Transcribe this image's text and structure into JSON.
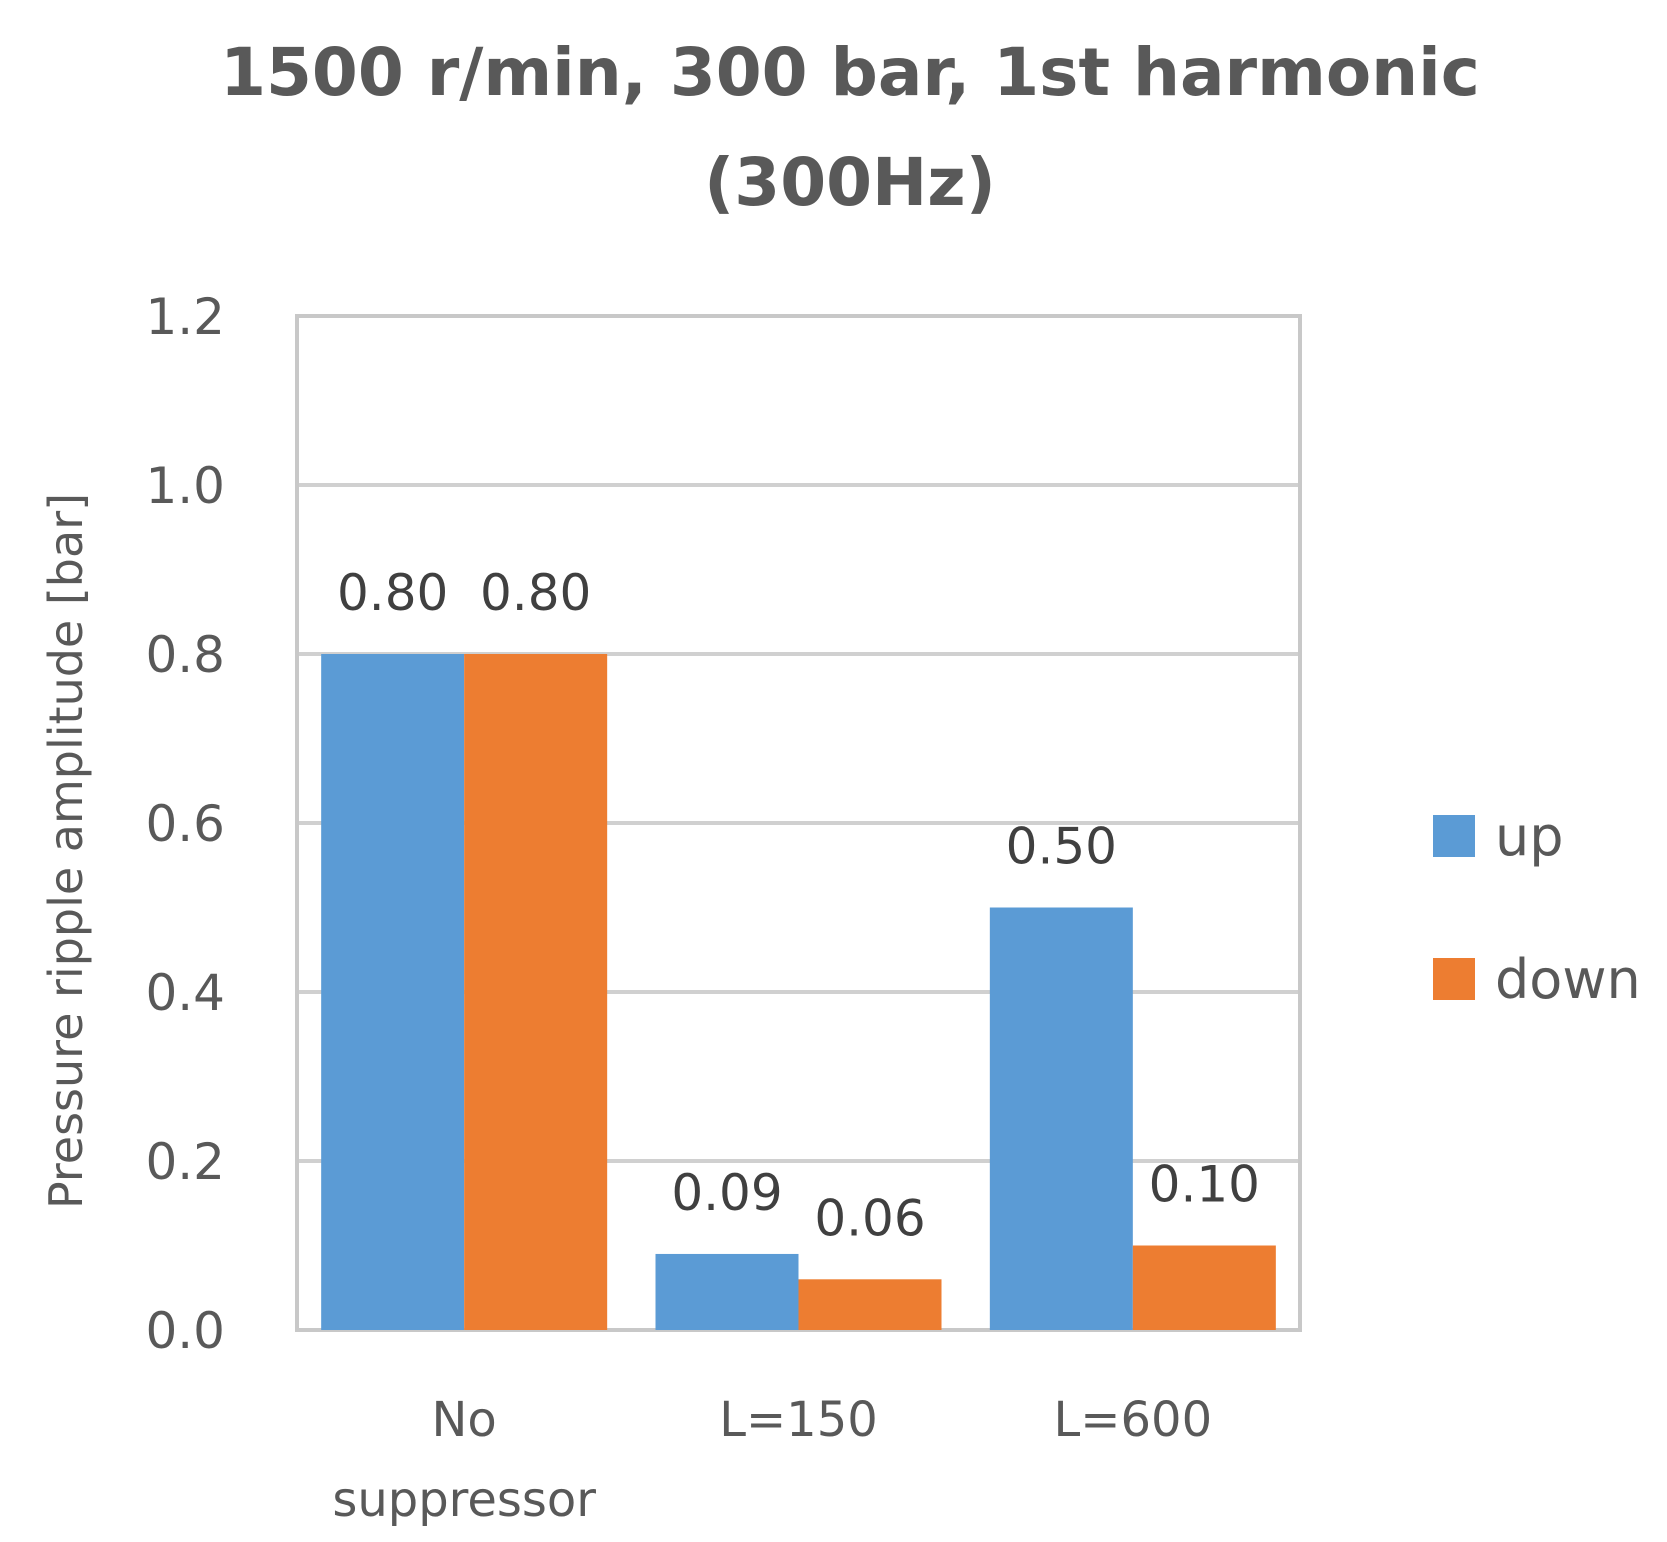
{
  "chart_data": {
    "type": "bar",
    "title_lines": [
      "1500 r/min, 300 bar, 1st harmonic",
      "(300Hz)"
    ],
    "ylabel": "Pressure ripple amplitude [bar]",
    "xlabel": "",
    "ylim": [
      0,
      1.2
    ],
    "yticks": [
      "0.0",
      "0.2",
      "0.4",
      "0.6",
      "0.8",
      "1.0",
      "1.2"
    ],
    "categories": [
      [
        "No",
        "suppressor"
      ],
      [
        "L=150"
      ],
      [
        "L=600"
      ]
    ],
    "series": [
      {
        "name": "up",
        "color": "#5B9BD5",
        "values": [
          0.8,
          0.09,
          0.5
        ],
        "labels": [
          "0.80",
          "0.09",
          "0.50"
        ]
      },
      {
        "name": "down",
        "color": "#ED7D31",
        "values": [
          0.8,
          0.06,
          0.1
        ],
        "labels": [
          "0.80",
          "0.06",
          "0.10"
        ]
      }
    ],
    "grid": true,
    "legend_position": "right"
  }
}
